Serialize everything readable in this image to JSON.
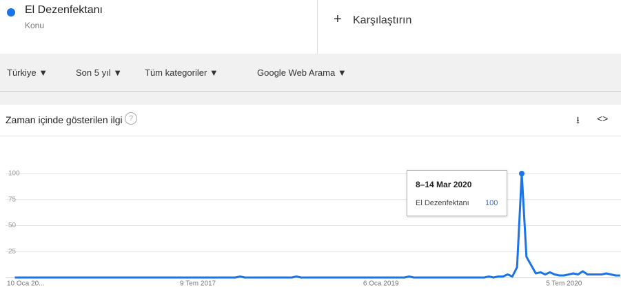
{
  "header": {
    "subtitle": "Konu",
    "compare": "Karşılaştırın"
  },
  "filters": [
    "Türkiye",
    "Son 5 yıl",
    "Tüm kategoriler",
    "Google Web Arama"
  ],
  "section_title": "Zaman içinde gösterilen ilgi",
  "tooltip": {
    "date": "8–14 Mar 2020"
  },
  "chart_data": {
    "type": "line",
    "categories": [
      "10 Oca 20...",
      null,
      null,
      null,
      null,
      null,
      null,
      null,
      null,
      null,
      null,
      null,
      null,
      null,
      null,
      null,
      null,
      null,
      null,
      null,
      null,
      null,
      null,
      null,
      null,
      null,
      null,
      null,
      null,
      null,
      null,
      null,
      null,
      null,
      null,
      null,
      null,
      null,
      null,
      "9 Tem 2017",
      null,
      null,
      null,
      null,
      null,
      null,
      null,
      null,
      null,
      null,
      null,
      null,
      null,
      null,
      null,
      null,
      null,
      null,
      null,
      null,
      null,
      null,
      null,
      null,
      null,
      null,
      null,
      null,
      null,
      null,
      null,
      null,
      null,
      null,
      null,
      null,
      null,
      null,
      "6 Oca 2019",
      null,
      null,
      null,
      null,
      null,
      null,
      null,
      null,
      null,
      null,
      null,
      null,
      null,
      null,
      null,
      null,
      null,
      null,
      null,
      null,
      null,
      null,
      null,
      null,
      null,
      null,
      null,
      null,
      null,
      null,
      null,
      null,
      null,
      null,
      null,
      null,
      null,
      null,
      "5 Tem 2020",
      null,
      null,
      null,
      null,
      null,
      null,
      null,
      null,
      null,
      null,
      null,
      null
    ],
    "series": [
      {
        "name": "El Dezenfektanı",
        "color": "#1a73e8",
        "values": [
          0,
          0,
          0,
          0,
          0,
          0,
          0,
          0,
          0,
          0,
          0,
          0,
          0,
          0,
          0,
          0,
          0,
          0,
          0,
          0,
          0,
          0,
          0,
          0,
          0,
          0,
          0,
          0,
          0,
          0,
          0,
          0,
          0,
          0,
          0,
          0,
          0,
          0,
          0,
          0,
          0,
          0,
          0,
          0,
          0,
          0,
          0,
          0,
          1,
          0,
          0,
          0,
          0,
          0,
          0,
          0,
          0,
          0,
          0,
          0,
          1,
          0,
          0,
          0,
          0,
          0,
          0,
          0,
          0,
          0,
          0,
          0,
          0,
          0,
          0,
          0,
          0,
          0,
          0,
          0,
          0,
          0,
          0,
          0,
          1,
          0,
          0,
          0,
          0,
          0,
          0,
          0,
          0,
          0,
          0,
          0,
          0,
          0,
          0,
          0,
          0,
          1,
          0,
          1,
          1,
          3,
          1,
          10,
          100,
          20,
          12,
          4,
          5,
          3,
          5,
          3,
          2,
          2,
          3,
          4,
          3,
          6,
          3,
          3,
          3,
          3,
          4,
          3,
          2,
          2
        ]
      }
    ],
    "ylim": [
      0,
      100
    ],
    "yticks": [
      25,
      50,
      75,
      100
    ],
    "grid": true,
    "highlight_index": 108
  }
}
